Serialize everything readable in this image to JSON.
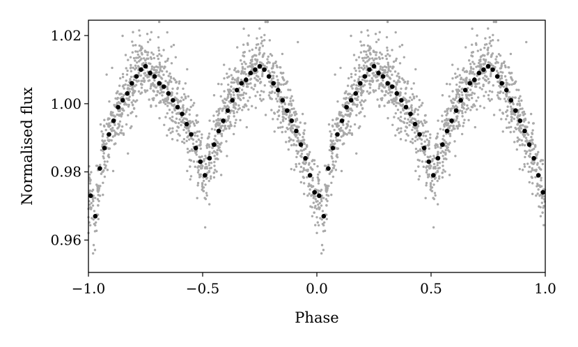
{
  "chart_data": {
    "type": "scatter",
    "xlabel": "Phase",
    "ylabel": "Normalised flux",
    "xlim": [
      -1.0,
      1.0
    ],
    "ylim": [
      0.9505,
      1.0245
    ],
    "x_ticks": [
      -1.0,
      -0.5,
      0.0,
      0.5,
      1.0
    ],
    "x_tick_labels": [
      "−1.0",
      "−0.5",
      "0.0",
      "0.5",
      "1.0"
    ],
    "y_ticks": [
      0.96,
      0.98,
      1.0,
      1.02
    ],
    "y_tick_labels": [
      "0.96",
      "0.98",
      "1.00",
      "1.02"
    ],
    "grid": false,
    "legend": "none",
    "colors": {
      "raw": "#a9a9a9",
      "binned": "#000000"
    },
    "series": [
      {
        "marker": "small grey dots",
        "description_points": "raw photometry, phase-folded and repeated over two cycles; approx. 3000 points following the binned curve with scatter ~0.005",
        "repeat_period": 1.0
      },
      {
        "marker": "black filled circles",
        "repeat_period": 1.0,
        "x": [
          -0.99,
          -0.97,
          -0.95,
          -0.93,
          -0.91,
          -0.89,
          -0.87,
          -0.85,
          -0.83,
          -0.81,
          -0.79,
          -0.77,
          -0.75,
          -0.73,
          -0.71,
          -0.69,
          -0.67,
          -0.65,
          -0.63,
          -0.61,
          -0.59,
          -0.57,
          -0.55,
          -0.53,
          -0.51,
          -0.49,
          -0.47,
          -0.45,
          -0.43,
          -0.41,
          -0.39,
          -0.37,
          -0.35,
          -0.33,
          -0.31,
          -0.29,
          -0.27,
          -0.25,
          -0.23,
          -0.21,
          -0.19,
          -0.17,
          -0.15,
          -0.13,
          -0.11,
          -0.09,
          -0.07,
          -0.05,
          -0.03,
          -0.01
        ],
        "y": [
          0.973,
          0.967,
          0.981,
          0.987,
          0.991,
          0.995,
          0.999,
          1.001,
          1.003,
          1.006,
          1.008,
          1.01,
          1.011,
          1.009,
          1.008,
          1.006,
          1.005,
          1.003,
          1.001,
          0.999,
          0.997,
          0.994,
          0.991,
          0.987,
          0.983,
          0.979,
          0.984,
          0.988,
          0.992,
          0.995,
          0.998,
          1.001,
          1.004,
          1.006,
          1.007,
          1.009,
          1.01,
          1.011,
          1.01,
          1.008,
          1.006,
          1.004,
          1.001,
          0.998,
          0.995,
          0.992,
          0.988,
          0.984,
          0.979,
          0.974
        ]
      }
    ]
  }
}
